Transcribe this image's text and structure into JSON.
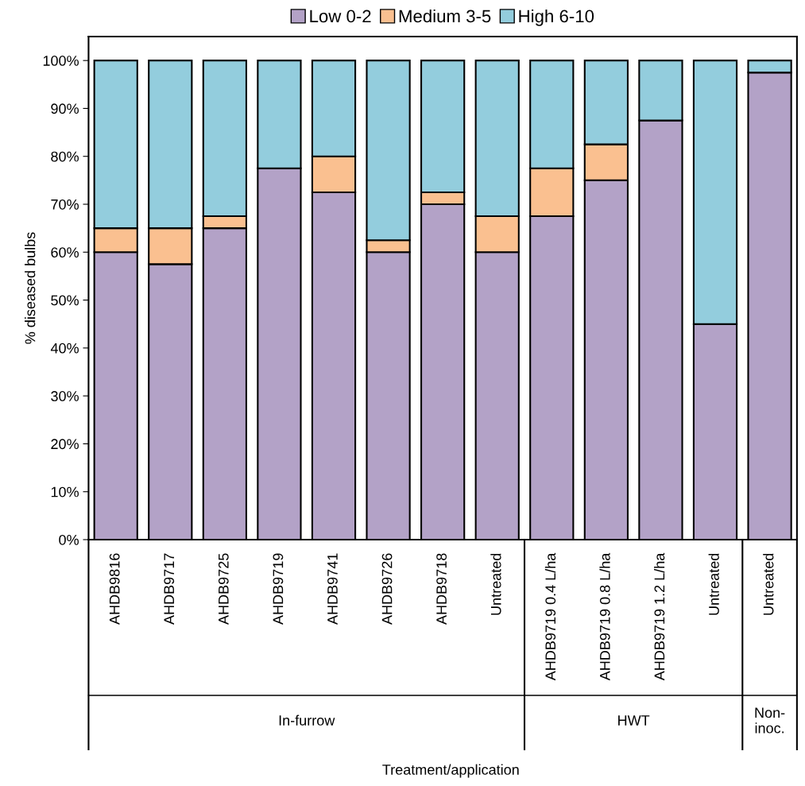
{
  "chart_data": {
    "type": "bar",
    "stacked": true,
    "ylabel": "% diseased bulbs",
    "categories": [
      "AHDB9816",
      "AHDB9717",
      "AHDB9725",
      "AHDB9719",
      "AHDB9741",
      "AHDB9726",
      "AHDB9718",
      "Untreated",
      "AHDB9719 0.4 L/ha",
      "AHDB9719 0.8 L/ha",
      "AHDB9719 1.2 L/ha",
      "Untreated",
      "Untreated"
    ],
    "series": [
      {
        "name": "Low 0-2",
        "color": "#b3a2c7",
        "values": [
          60,
          57.5,
          65,
          77.5,
          72.5,
          60,
          70,
          60,
          67.5,
          75,
          87.5,
          45,
          97.5
        ]
      },
      {
        "name": "Medium 3-5",
        "color": "#fac090",
        "values": [
          5,
          7.5,
          2.5,
          0,
          7.5,
          2.5,
          2.5,
          7.5,
          10,
          7.5,
          0,
          0,
          0
        ]
      },
      {
        "name": "High 6-10",
        "color": "#93cddd",
        "values": [
          35,
          35,
          32.5,
          22.5,
          20,
          37.5,
          27.5,
          32.5,
          22.5,
          17.5,
          12.5,
          55,
          2.5
        ]
      }
    ],
    "ylim": [
      0,
      105
    ],
    "yticks": [
      {
        "value": 0,
        "label": "0%"
      },
      {
        "value": 10,
        "label": "10%"
      },
      {
        "value": 20,
        "label": "20%"
      },
      {
        "value": 30,
        "label": "30%"
      },
      {
        "value": 40,
        "label": "40%"
      },
      {
        "value": 50,
        "label": "50%"
      },
      {
        "value": 60,
        "label": "60%"
      },
      {
        "value": 70,
        "label": "70%"
      },
      {
        "value": 80,
        "label": "80%"
      },
      {
        "value": 90,
        "label": "90%"
      },
      {
        "value": 100,
        "label": "100%"
      }
    ],
    "annotations": [
      "In-furrow",
      "HWT",
      "Non-\ninoc.",
      "Treatment/application"
    ],
    "legend": "top",
    "grid": false
  }
}
